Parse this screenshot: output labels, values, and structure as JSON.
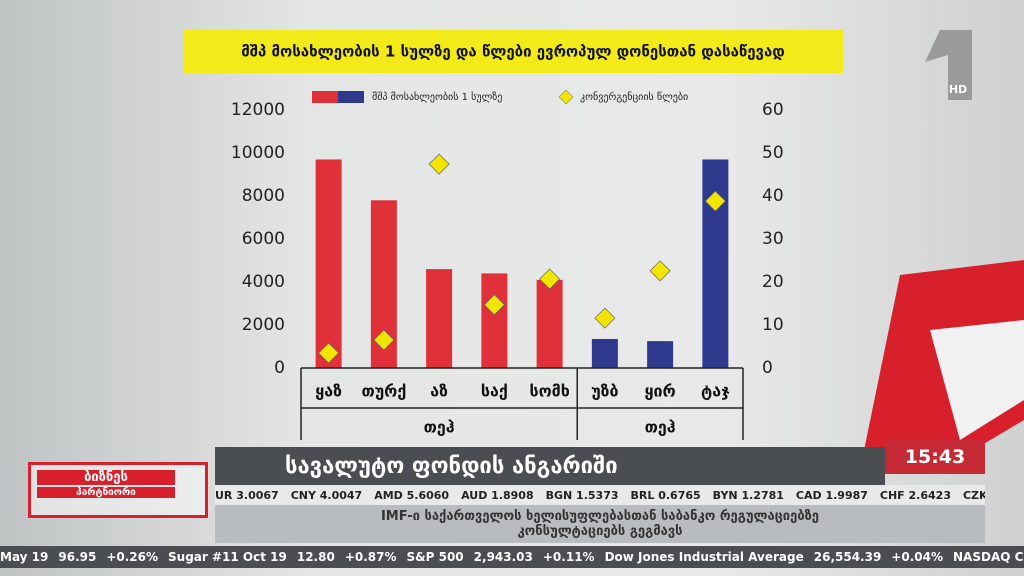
{
  "chart_data": {
    "type": "bar",
    "title": "მშპ მოსახლეობის 1 სულზე და წლები ევროპულ დონესთან დასაწევად",
    "categories": [
      "ყაზ",
      "თურქ",
      "აზ",
      "საქ",
      "სომხ",
      "უზბ",
      "ყირ",
      "ტაჯ"
    ],
    "groups": [
      {
        "name": "თეჰ",
        "size": 5
      },
      {
        "name": "თეჰ",
        "size": 3
      }
    ],
    "series": [
      {
        "name": "მშპ მოსახლეობის 1 სულზე",
        "colors": [
          "#e0303a",
          "#e0303a",
          "#e0303a",
          "#e0303a",
          "#e0303a",
          "#2f3a8f",
          "#2f3a8f",
          "#2f3a8f"
        ],
        "values": [
          9700,
          7800,
          4600,
          4400,
          4100,
          1350,
          1250,
          9700
        ]
      },
      {
        "name": "კონვერგენციის წლები",
        "color": "#f2e600",
        "marker": "diamond",
        "axis": "y2",
        "values": [
          3.5,
          6.5,
          47.4,
          14.7,
          20.7,
          11.6,
          22.6,
          38.8
        ]
      }
    ],
    "ylim": [
      0,
      12000
    ],
    "yticks": [
      0,
      2000,
      4000,
      6000,
      8000,
      10000,
      12000
    ],
    "y2lim": [
      0,
      60
    ],
    "y2ticks": [
      0,
      10,
      20,
      30,
      40,
      50,
      60
    ]
  },
  "channel": {
    "hd": "HD"
  },
  "logo": {
    "line1": "ბიზნეს",
    "line2": "პარტნიორი"
  },
  "banner": {
    "headline": "სავალუტო ფონდის ანგარიში",
    "time": "15:43",
    "subtitle": "IMF-ი საქართველოს ხელისუფლებასთან საბანკო რეგულაციებზე კონსულტაციებს გეგმავს"
  },
  "currency_ticker": [
    "UR 3.0067",
    "CNY 4.0047",
    "AMD 5.6060",
    "AUD 1.8908",
    "BGN 1.5373",
    "BRL 0.6765",
    "BYN 1.2781",
    "CAD 1.9987",
    "CHF 2.6423",
    "CZK"
  ],
  "market_ticker": [
    "May 19",
    "96.95",
    "+0.26%",
    "Sugar #11 Oct 19",
    "12.80",
    "+0.87%",
    "S&P 500",
    "2,943.03",
    "+0.11%",
    "Dow Jones Industrial Average",
    "26,554.39",
    "+0.04%",
    "NASDAQ Composite"
  ]
}
